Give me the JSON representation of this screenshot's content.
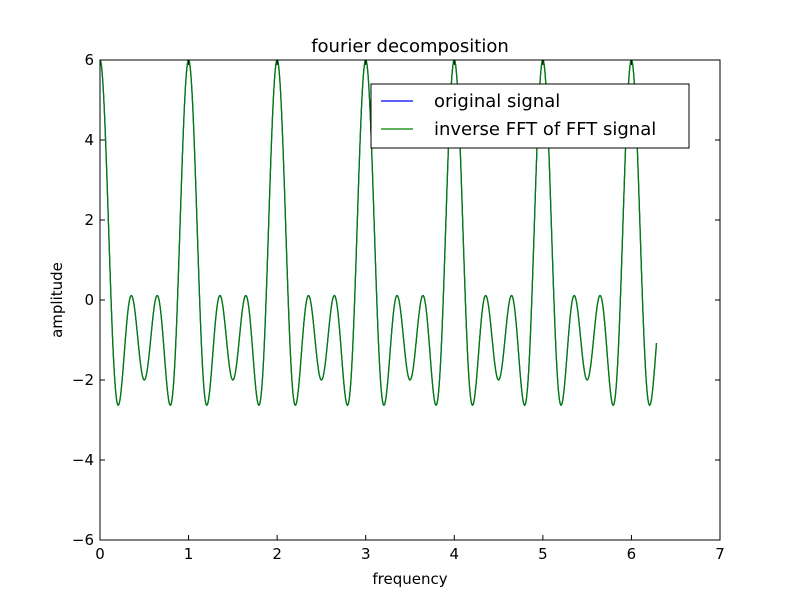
{
  "chart_data": {
    "type": "line",
    "title": "fourier decomposition",
    "xlabel": "frequency",
    "ylabel": "amplitude",
    "xlim": [
      0,
      7
    ],
    "ylim": [
      -6,
      6
    ],
    "xticks": [
      0,
      1,
      2,
      3,
      4,
      5,
      6,
      7
    ],
    "yticks": [
      -6,
      -4,
      -2,
      0,
      2,
      4,
      6
    ],
    "x_range": [
      0,
      6.283
    ],
    "series": [
      {
        "name": "original signal",
        "color": "#0000ff",
        "formula": "2cos(2πx) + 2cos(4πx) + 2cos(6πx)",
        "components": [
          {
            "amplitude": 2,
            "cycles_per_unit": 1
          },
          {
            "amplitude": 2,
            "cycles_per_unit": 2
          },
          {
            "amplitude": 2,
            "cycles_per_unit": 3
          }
        ]
      },
      {
        "name": "inverse FFT of FFT signal",
        "color": "#008000",
        "formula": "2cos(2πx) + 2cos(4πx) + 2cos(6πx)",
        "components": [
          {
            "amplitude": 2,
            "cycles_per_unit": 1
          },
          {
            "amplitude": 2,
            "cycles_per_unit": 2
          },
          {
            "amplitude": 2,
            "cycles_per_unit": 3
          }
        ]
      }
    ],
    "legend": {
      "placement": "upper-right",
      "entries": [
        "original signal",
        "inverse FFT of FFT signal"
      ]
    },
    "grid": false
  }
}
